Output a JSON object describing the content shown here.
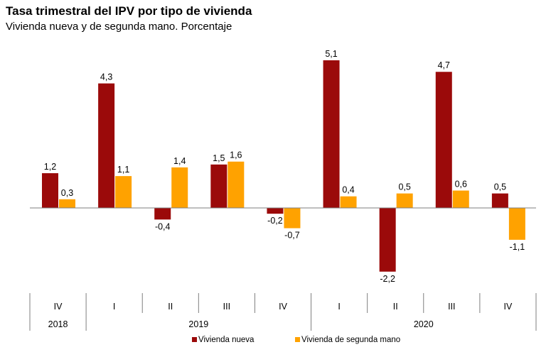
{
  "chart_data": {
    "type": "bar",
    "title": "Tasa trimestral del IPV por tipo de vivienda",
    "subtitle": "Vivienda nueva y de segunda mano. Porcentaje",
    "categories": [
      "IV",
      "I",
      "II",
      "III",
      "IV",
      "I",
      "II",
      "III",
      "IV"
    ],
    "years": [
      {
        "label": "2018",
        "span": 1
      },
      {
        "label": "2019",
        "span": 4
      },
      {
        "label": "2020",
        "span": 4
      }
    ],
    "series": [
      {
        "name": "Vivienda nueva",
        "color": "#9B0A0A",
        "values": [
          1.2,
          4.3,
          -0.4,
          1.5,
          -0.2,
          5.1,
          -2.2,
          4.7,
          0.5
        ],
        "labels": [
          "1,2",
          "4,3",
          "-0,4",
          "1,5",
          "-0,2",
          "5,1",
          "-2,2",
          "4,7",
          "0,5"
        ]
      },
      {
        "name": "Vivienda de segunda mano",
        "color": "#FFA200",
        "values": [
          0.3,
          1.1,
          1.4,
          1.6,
          -0.7,
          0.4,
          0.5,
          0.6,
          -1.1
        ],
        "labels": [
          "0,3",
          "1,1",
          "1,4",
          "1,6",
          "-0,7",
          "0,4",
          "0,5",
          "0,6",
          "-1,1"
        ]
      }
    ],
    "legend_position": "bottom"
  }
}
